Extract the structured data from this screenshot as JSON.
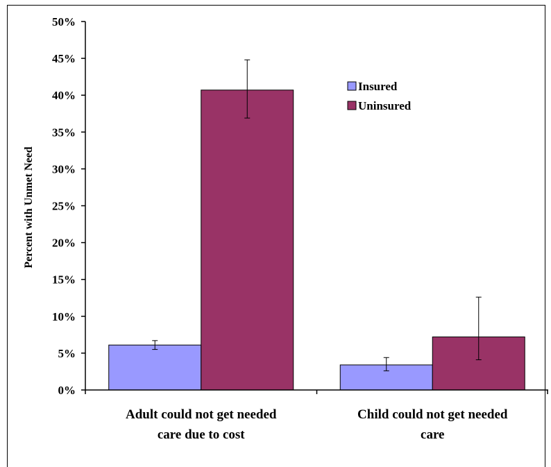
{
  "chart_data": {
    "type": "bar",
    "title": "",
    "xlabel": "",
    "ylabel": "Percent with Unmet Need",
    "ylim": [
      0,
      50
    ],
    "ytick_step": 5,
    "ytick_suffix": "%",
    "categories": [
      [
        "Adult could not get needed",
        "care due to cost"
      ],
      [
        "Child could not get needed",
        "care"
      ]
    ],
    "series": [
      {
        "name": "Insured",
        "color": "#9999ff",
        "values": [
          6.1,
          3.4
        ],
        "err_low": [
          5.5,
          2.6
        ],
        "err_high": [
          6.7,
          4.4
        ]
      },
      {
        "name": "Uninsured",
        "color": "#993366",
        "values": [
          40.7,
          7.2
        ],
        "err_low": [
          36.9,
          4.1
        ],
        "err_high": [
          44.8,
          12.6
        ]
      }
    ],
    "legend": "inside-top-right",
    "grid": false
  }
}
